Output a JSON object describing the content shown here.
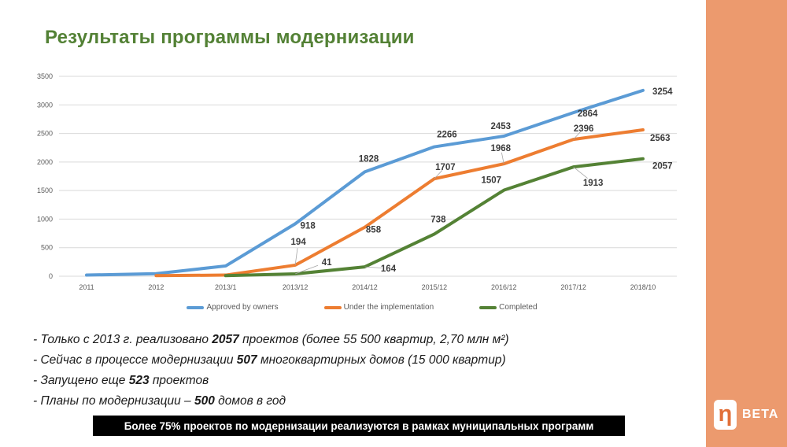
{
  "title": {
    "text": "Результаты программы модернизации",
    "color": "#538135"
  },
  "chart_data": {
    "type": "line",
    "categories": [
      "2011",
      "2012",
      "2013/1",
      "2013/12",
      "2014/12",
      "2015/12",
      "2016/12",
      "2017/12",
      "2018/10"
    ],
    "series": [
      {
        "name": "Approved by owners",
        "color": "#5B9BD5",
        "values": [
          20,
          45,
          180,
          918,
          1828,
          2266,
          2453,
          2864,
          3254
        ]
      },
      {
        "name": "Under the implementation",
        "color": "#ED7D31",
        "values": [
          null,
          10,
          20,
          194,
          858,
          1707,
          1968,
          2396,
          2563
        ]
      },
      {
        "name": "Completed",
        "color": "#548235",
        "values": [
          null,
          null,
          10,
          41,
          164,
          738,
          1507,
          1913,
          2057
        ]
      }
    ],
    "labeled_from_index": 3,
    "ylim": [
      0,
      3500
    ],
    "yticks": [
      0,
      500,
      1000,
      1500,
      2000,
      2500,
      3000,
      3500
    ],
    "grid": true,
    "legend_position": "bottom",
    "gridline_color": "#d9d9d9",
    "axis_text_color": "#595959",
    "data_label_color": "#3b3b3b"
  },
  "bullets": [
    {
      "segments": [
        {
          "t": "- Только с 2013 г. реализовано ",
          "b": false
        },
        {
          "t": "2057",
          "b": true
        },
        {
          "t": " проектов (более 55 500 квартир, 2,70 млн м²)",
          "b": false
        }
      ]
    },
    {
      "segments": [
        {
          "t": "- Сейчас в процессе модернизации ",
          "b": false
        },
        {
          "t": "507",
          "b": true
        },
        {
          "t": " многоквартирных домов (15 000 квартир)",
          "b": false
        }
      ]
    },
    {
      "segments": [
        {
          "t": "- Запущено еще ",
          "b": false
        },
        {
          "t": "523",
          "b": true
        },
        {
          "t": " проектов",
          "b": false
        }
      ]
    },
    {
      "segments": [
        {
          "t": "- Планы по модернизации – ",
          "b": false
        },
        {
          "t": "500",
          "b": true
        },
        {
          "t": " домов в год",
          "b": false
        }
      ]
    }
  ],
  "banner": {
    "text": "Более 75% проектов по модернизации реализуются в рамках муниципальных программ",
    "bg": "#000000",
    "color": "#ffffff"
  },
  "sidebar": {
    "color": "#EC9A6E"
  },
  "logo": {
    "glyph": "η",
    "text": "BETA",
    "glyph_color": "#E2703A"
  }
}
